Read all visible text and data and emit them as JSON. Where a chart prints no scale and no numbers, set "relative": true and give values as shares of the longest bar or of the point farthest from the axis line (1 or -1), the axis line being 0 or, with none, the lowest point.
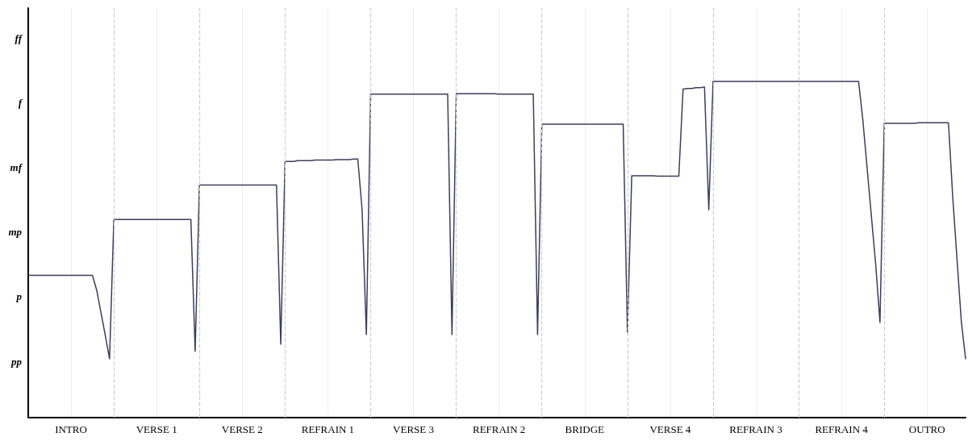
{
  "chart_data": {
    "type": "line",
    "relative": true,
    "categories": [
      null,
      null,
      null,
      null,
      null,
      null,
      null,
      null,
      null,
      null,
      "INTRO",
      null,
      null,
      null,
      null,
      null,
      null,
      null,
      null,
      null,
      null,
      null,
      null,
      null,
      null,
      null,
      null,
      null,
      null,
      null,
      "VERSE 1",
      null,
      null,
      null,
      null,
      null,
      null,
      null,
      null,
      null,
      null,
      null,
      null,
      null,
      null,
      null,
      null,
      null,
      null,
      null,
      "VERSE 2",
      null,
      null,
      null,
      null,
      null,
      null,
      null,
      null,
      null,
      null,
      null,
      null,
      null,
      null,
      null,
      null,
      null,
      null,
      null,
      "REFRAIN 1",
      null,
      null,
      null,
      null,
      null,
      null,
      null,
      null,
      null,
      null,
      null,
      null,
      null,
      null,
      null,
      null,
      null,
      null,
      null,
      "VERSE 3",
      null,
      null,
      null,
      null,
      null,
      null,
      null,
      null,
      null,
      null,
      null,
      null,
      null,
      null,
      null,
      null,
      null,
      null,
      null,
      "REFRAIN 2",
      null,
      null,
      null,
      null,
      null,
      null,
      null,
      null,
      null,
      null,
      null,
      null,
      null,
      null,
      null,
      null,
      null,
      null,
      null,
      "BRIDGE",
      null,
      null,
      null,
      null,
      null,
      null,
      null,
      null,
      null,
      null,
      null,
      null,
      null,
      null,
      null,
      null,
      null,
      null,
      null,
      "VERSE 4",
      null,
      null,
      null,
      null,
      null,
      null,
      null,
      null,
      null,
      null,
      null,
      null,
      null,
      null,
      null,
      null,
      null,
      null,
      null,
      "REFRAIN 3",
      null,
      null,
      null,
      null,
      null,
      null,
      null,
      null,
      null,
      null,
      null,
      null,
      null,
      null,
      null,
      null,
      null,
      null,
      null,
      "REFRAIN 4",
      null,
      null,
      null,
      null,
      null,
      null,
      null,
      null,
      null,
      null,
      null,
      null,
      null,
      null,
      null,
      null,
      null,
      null,
      null,
      "OUTRO",
      null,
      null,
      null,
      null,
      null,
      null,
      null,
      null,
      null
    ],
    "series": [
      {
        "color": "#3d3d5c",
        "values": [
          0.423,
          0.423,
          0.423,
          0.423,
          0.423,
          0.423,
          0.423,
          0.423,
          0.423,
          0.423,
          0.423,
          0.423,
          0.423,
          0.423,
          0.423,
          0.423,
          0.379,
          0.312,
          0.245,
          0.175,
          0.589,
          0.589,
          0.589,
          0.589,
          0.589,
          0.589,
          0.589,
          0.589,
          0.589,
          0.589,
          0.589,
          0.589,
          0.589,
          0.589,
          0.589,
          0.589,
          0.589,
          0.589,
          0.589,
          0.197,
          0.692,
          0.692,
          0.692,
          0.692,
          0.692,
          0.692,
          0.692,
          0.692,
          0.692,
          0.692,
          0.692,
          0.692,
          0.692,
          0.692,
          0.692,
          0.692,
          0.692,
          0.692,
          0.692,
          0.218,
          0.762,
          0.762,
          0.762,
          0.764,
          0.764,
          0.764,
          0.764,
          0.766,
          0.766,
          0.766,
          0.766,
          0.766,
          0.767,
          0.767,
          0.767,
          0.767,
          0.769,
          0.769,
          0.619,
          0.247,
          0.962,
          0.962,
          0.962,
          0.962,
          0.962,
          0.962,
          0.962,
          0.962,
          0.962,
          0.962,
          0.962,
          0.962,
          0.962,
          0.962,
          0.962,
          0.962,
          0.962,
          0.962,
          0.962,
          0.247,
          0.963,
          0.963,
          0.963,
          0.963,
          0.963,
          0.963,
          0.963,
          0.963,
          0.963,
          0.963,
          0.962,
          0.962,
          0.962,
          0.962,
          0.962,
          0.962,
          0.962,
          0.962,
          0.962,
          0.247,
          0.873,
          0.873,
          0.873,
          0.873,
          0.873,
          0.873,
          0.873,
          0.873,
          0.873,
          0.873,
          0.873,
          0.873,
          0.873,
          0.873,
          0.873,
          0.873,
          0.873,
          0.873,
          0.873,
          0.873,
          0.254,
          0.719,
          0.719,
          0.719,
          0.719,
          0.719,
          0.719,
          0.718,
          0.718,
          0.718,
          0.718,
          0.718,
          0.718,
          0.977,
          0.979,
          0.979,
          0.981,
          0.981,
          0.983,
          0.618,
          1.0,
          1.0,
          1.0,
          1.0,
          1.0,
          1.0,
          1.0,
          1.0,
          1.0,
          1.0,
          1.0,
          1.0,
          1.0,
          1.0,
          1.0,
          1.0,
          1.0,
          1.0,
          1.0,
          1.0,
          1.0,
          1.0,
          1.0,
          1.0,
          1.0,
          1.0,
          1.0,
          1.0,
          1.0,
          1.0,
          1.0,
          1.0,
          1.0,
          1.0,
          1.0,
          0.885,
          0.742,
          0.598,
          0.456,
          0.283,
          0.875,
          0.875,
          0.875,
          0.875,
          0.875,
          0.875,
          0.875,
          0.875,
          0.877,
          0.877,
          0.877,
          0.877,
          0.877,
          0.877,
          0.877,
          0.877,
          0.656,
          0.471,
          0.287,
          0.175
        ]
      }
    ],
    "annotations": [
      "pp",
      "p",
      "mp",
      "mf",
      "f",
      "ff"
    ],
    "grid": "x",
    "marker": "none",
    "line_style": "solid"
  }
}
